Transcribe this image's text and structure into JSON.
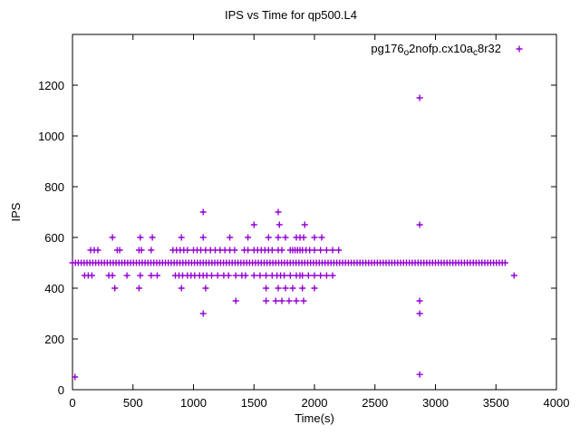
{
  "window": {
    "background": "#ffffff"
  },
  "colors": {
    "series": "#9400d3",
    "axis": "#000000",
    "text": "#000000"
  },
  "chart_data": {
    "type": "scatter",
    "title": "IPS vs Time for qp500.L4",
    "xlabel": "Time(s)",
    "ylabel": "IPS",
    "xlim": [
      0,
      4000
    ],
    "ylim": [
      0,
      1400
    ],
    "x_ticks": [
      0,
      500,
      1000,
      1500,
      2000,
      2500,
      3000,
      3500,
      4000
    ],
    "y_ticks": [
      0,
      200,
      400,
      600,
      800,
      1000,
      1200
    ],
    "grid": false,
    "legend_position": "top-right-inside",
    "series": [
      {
        "name": "pg176_o2nofp.cx10a_c8r32",
        "label_parts": [
          {
            "text": "pg176"
          },
          {
            "text": "o",
            "sub": true
          },
          {
            "text": "2nofp.cx10a"
          },
          {
            "text": "c",
            "sub": true
          },
          {
            "text": "8r32"
          }
        ],
        "marker": "plus",
        "color": "#9400d3",
        "dense_band": {
          "y": 500,
          "x_start": 0,
          "x_end": 3590,
          "x_step": 24
        },
        "points": [
          [
            20,
            50
          ],
          [
            2870,
            1150
          ],
          [
            2870,
            650
          ],
          [
            2870,
            350
          ],
          [
            2870,
            300
          ],
          [
            2870,
            60
          ],
          [
            3650,
            450
          ],
          [
            1080,
            700
          ],
          [
            1700,
            700
          ],
          [
            1500,
            650
          ],
          [
            1710,
            650
          ],
          [
            1920,
            650
          ],
          [
            330,
            600
          ],
          [
            560,
            600
          ],
          [
            660,
            600
          ],
          [
            900,
            600
          ],
          [
            1080,
            600
          ],
          [
            1300,
            600
          ],
          [
            1450,
            600
          ],
          [
            1620,
            600
          ],
          [
            1700,
            600
          ],
          [
            1760,
            600
          ],
          [
            1850,
            600
          ],
          [
            1880,
            600
          ],
          [
            1910,
            600
          ],
          [
            2000,
            600
          ],
          [
            2060,
            600
          ],
          [
            150,
            550
          ],
          [
            180,
            550
          ],
          [
            210,
            550
          ],
          [
            370,
            550
          ],
          [
            390,
            550
          ],
          [
            550,
            550
          ],
          [
            570,
            550
          ],
          [
            650,
            550
          ],
          [
            830,
            550
          ],
          [
            860,
            550
          ],
          [
            890,
            550
          ],
          [
            920,
            550
          ],
          [
            950,
            550
          ],
          [
            1000,
            550
          ],
          [
            1030,
            550
          ],
          [
            1060,
            550
          ],
          [
            1100,
            550
          ],
          [
            1140,
            550
          ],
          [
            1180,
            550
          ],
          [
            1220,
            550
          ],
          [
            1260,
            550
          ],
          [
            1300,
            550
          ],
          [
            1340,
            550
          ],
          [
            1420,
            550
          ],
          [
            1450,
            550
          ],
          [
            1500,
            550
          ],
          [
            1530,
            550
          ],
          [
            1560,
            550
          ],
          [
            1590,
            550
          ],
          [
            1620,
            550
          ],
          [
            1650,
            550
          ],
          [
            1700,
            550
          ],
          [
            1730,
            550
          ],
          [
            1800,
            550
          ],
          [
            1820,
            550
          ],
          [
            1840,
            550
          ],
          [
            1860,
            550
          ],
          [
            1880,
            550
          ],
          [
            1900,
            550
          ],
          [
            1930,
            550
          ],
          [
            1960,
            550
          ],
          [
            2000,
            550
          ],
          [
            2050,
            550
          ],
          [
            2100,
            550
          ],
          [
            2150,
            550
          ],
          [
            2200,
            550
          ],
          [
            100,
            450
          ],
          [
            130,
            450
          ],
          [
            160,
            450
          ],
          [
            300,
            450
          ],
          [
            330,
            450
          ],
          [
            450,
            450
          ],
          [
            560,
            450
          ],
          [
            650,
            450
          ],
          [
            700,
            450
          ],
          [
            850,
            450
          ],
          [
            880,
            450
          ],
          [
            910,
            450
          ],
          [
            950,
            450
          ],
          [
            980,
            450
          ],
          [
            1010,
            450
          ],
          [
            1050,
            450
          ],
          [
            1080,
            450
          ],
          [
            1110,
            450
          ],
          [
            1150,
            450
          ],
          [
            1200,
            450
          ],
          [
            1250,
            450
          ],
          [
            1290,
            450
          ],
          [
            1350,
            450
          ],
          [
            1400,
            450
          ],
          [
            1430,
            450
          ],
          [
            1500,
            450
          ],
          [
            1550,
            450
          ],
          [
            1600,
            450
          ],
          [
            1650,
            450
          ],
          [
            1690,
            450
          ],
          [
            1720,
            450
          ],
          [
            1750,
            450
          ],
          [
            1800,
            450
          ],
          [
            1850,
            450
          ],
          [
            1880,
            450
          ],
          [
            1900,
            450
          ],
          [
            1950,
            450
          ],
          [
            2000,
            450
          ],
          [
            2050,
            450
          ],
          [
            2100,
            450
          ],
          [
            2150,
            450
          ],
          [
            350,
            400
          ],
          [
            550,
            400
          ],
          [
            900,
            400
          ],
          [
            1100,
            400
          ],
          [
            1600,
            400
          ],
          [
            1700,
            400
          ],
          [
            1760,
            400
          ],
          [
            1820,
            400
          ],
          [
            1900,
            400
          ],
          [
            2000,
            400
          ],
          [
            1350,
            350
          ],
          [
            1600,
            350
          ],
          [
            1680,
            350
          ],
          [
            1730,
            350
          ],
          [
            1790,
            350
          ],
          [
            1850,
            350
          ],
          [
            1910,
            350
          ],
          [
            1080,
            300
          ]
        ]
      }
    ]
  }
}
